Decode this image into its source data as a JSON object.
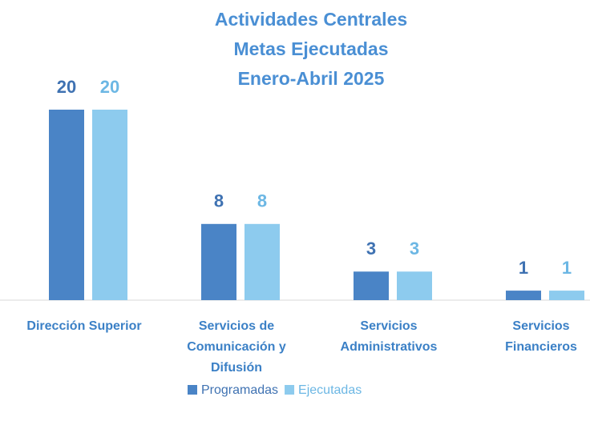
{
  "chart_data": {
    "type": "bar",
    "title": [
      "Actividades Centrales",
      "Metas Ejecutadas",
      "Enero-Abril 2025"
    ],
    "categories": [
      [
        "Dirección Superior"
      ],
      [
        "Servicios de",
        "Comunicación y",
        "Difusión"
      ],
      [
        "Servicios",
        "Administrativos"
      ],
      [
        "Servicios",
        "Financieros"
      ]
    ],
    "series": [
      {
        "name": "Programadas",
        "color": "#4a84c6",
        "label_color": "#3f72b2",
        "values": [
          20,
          8,
          3,
          1
        ]
      },
      {
        "name": "Ejecutadas",
        "color": "#8dcbee",
        "label_color": "#6cb7e4",
        "values": [
          20,
          8,
          3,
          1
        ]
      }
    ],
    "legend": "bottom"
  }
}
